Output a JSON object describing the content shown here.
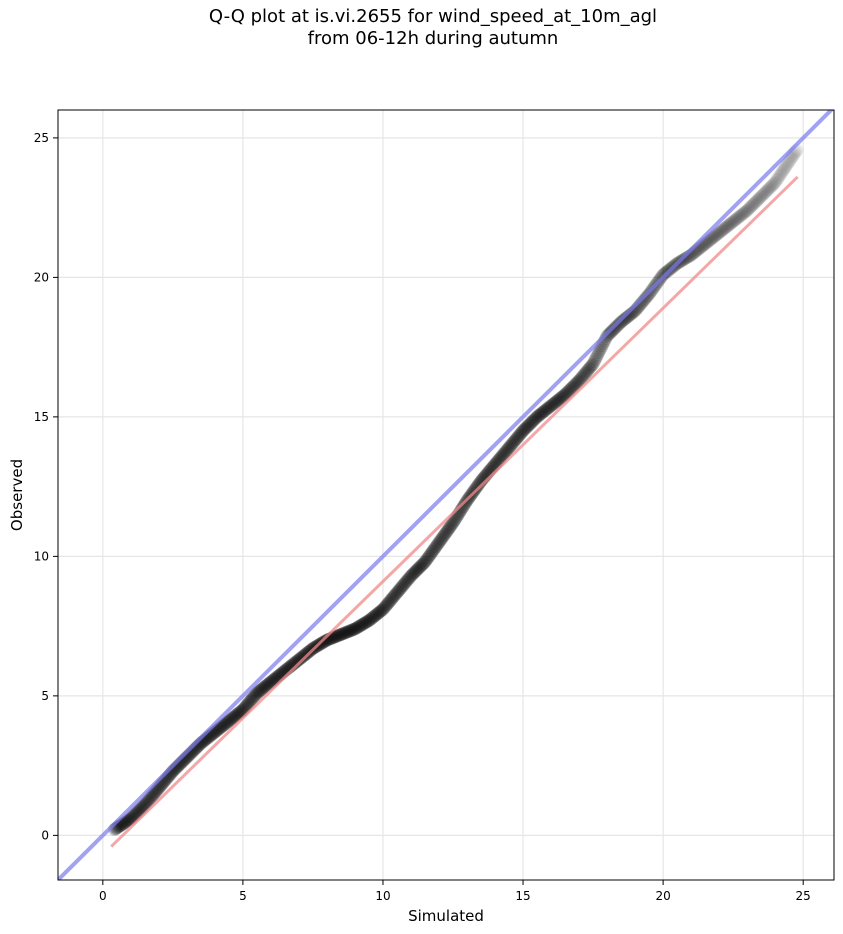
{
  "chart_data": {
    "type": "scatter",
    "title_line1": "Q-Q plot at is.vi.2655 for wind_speed_at_10m_agl",
    "title_line2": "from 06-12h during autumn",
    "xlabel": "Simulated",
    "ylabel": "Observed",
    "xlim": [
      -1.6,
      26.1
    ],
    "ylim": [
      -1.6,
      26.0
    ],
    "xticks": [
      0,
      5,
      10,
      15,
      20,
      25
    ],
    "yticks": [
      0,
      5,
      10,
      15,
      20,
      25
    ],
    "grid": true,
    "identity_line": {
      "color": "#7b7bef",
      "x": [
        -1.6,
        26.1
      ],
      "y": [
        -1.6,
        26.1
      ]
    },
    "fit_line": {
      "color": "#f08a8a",
      "x": [
        0.3,
        24.8
      ],
      "y": [
        -0.4,
        23.6
      ]
    },
    "quantile_curve": {
      "x": [
        0.4,
        1.0,
        1.5,
        2.0,
        2.5,
        3.0,
        3.5,
        4.0,
        4.5,
        5.0,
        5.5,
        6.0,
        6.5,
        7.0,
        7.5,
        8.0,
        8.5,
        9.0,
        9.5,
        10.0,
        10.5,
        11.0,
        11.5,
        12.0,
        12.5,
        13.0,
        13.5,
        14.0,
        14.5,
        15.0,
        15.5,
        16.0,
        16.5,
        17.0,
        17.5,
        18.0,
        18.5,
        19.0,
        19.5,
        20.0,
        20.5,
        21.0,
        21.5,
        22.0,
        22.5,
        23.0,
        23.5,
        24.0,
        24.8
      ],
      "y": [
        0.2,
        0.6,
        1.1,
        1.7,
        2.3,
        2.8,
        3.3,
        3.7,
        4.1,
        4.5,
        5.1,
        5.5,
        5.9,
        6.3,
        6.7,
        7.0,
        7.2,
        7.4,
        7.7,
        8.1,
        8.7,
        9.3,
        9.8,
        10.5,
        11.2,
        12.0,
        12.7,
        13.3,
        13.9,
        14.5,
        15.0,
        15.4,
        15.8,
        16.3,
        16.9,
        17.9,
        18.4,
        18.8,
        19.4,
        20.1,
        20.5,
        20.8,
        21.2,
        21.6,
        22.0,
        22.4,
        22.9,
        23.4,
        24.6
      ]
    },
    "point_count": 600,
    "point_color": "#000000"
  }
}
